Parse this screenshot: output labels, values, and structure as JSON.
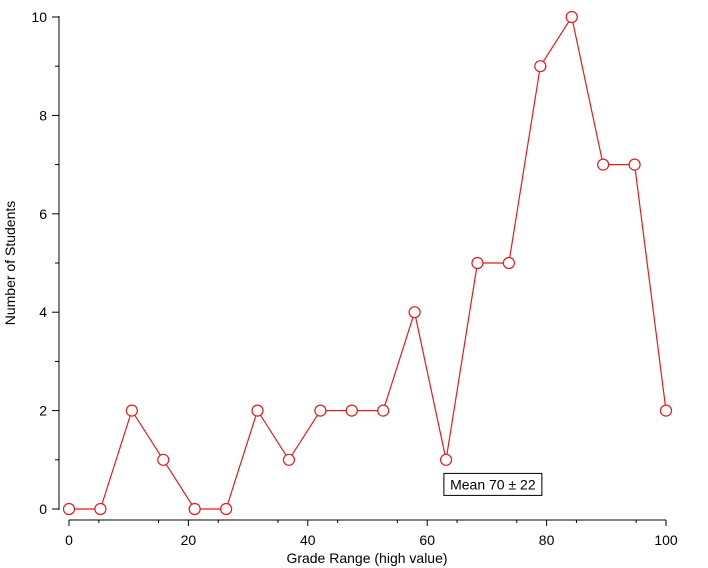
{
  "chart_data": {
    "type": "line",
    "title": "",
    "xlabel": "Grade Range (high value)",
    "ylabel": "Number of Students",
    "xlim": [
      0,
      100
    ],
    "ylim": [
      0,
      10
    ],
    "x_ticks": [
      0,
      20,
      40,
      60,
      80,
      100
    ],
    "y_ticks": [
      0,
      2,
      4,
      6,
      8,
      10
    ],
    "grid": false,
    "legend": "none",
    "series": [
      {
        "color": "#e8191c",
        "marker": "open-circle",
        "x": [
          0,
          5.26,
          10.53,
          15.79,
          21.05,
          26.32,
          31.58,
          36.84,
          42.11,
          47.37,
          52.63,
          57.89,
          63.16,
          68.42,
          73.68,
          78.95,
          84.21,
          89.47,
          94.74,
          100
        ],
        "y": [
          0,
          0,
          2,
          1,
          0,
          0,
          2,
          1,
          2,
          2,
          2,
          4,
          1,
          5,
          5,
          9,
          10,
          7,
          7,
          2
        ]
      }
    ],
    "annotations": [
      {
        "text": "Mean 70 ± 22",
        "x": 71,
        "y": 0.5
      }
    ]
  }
}
